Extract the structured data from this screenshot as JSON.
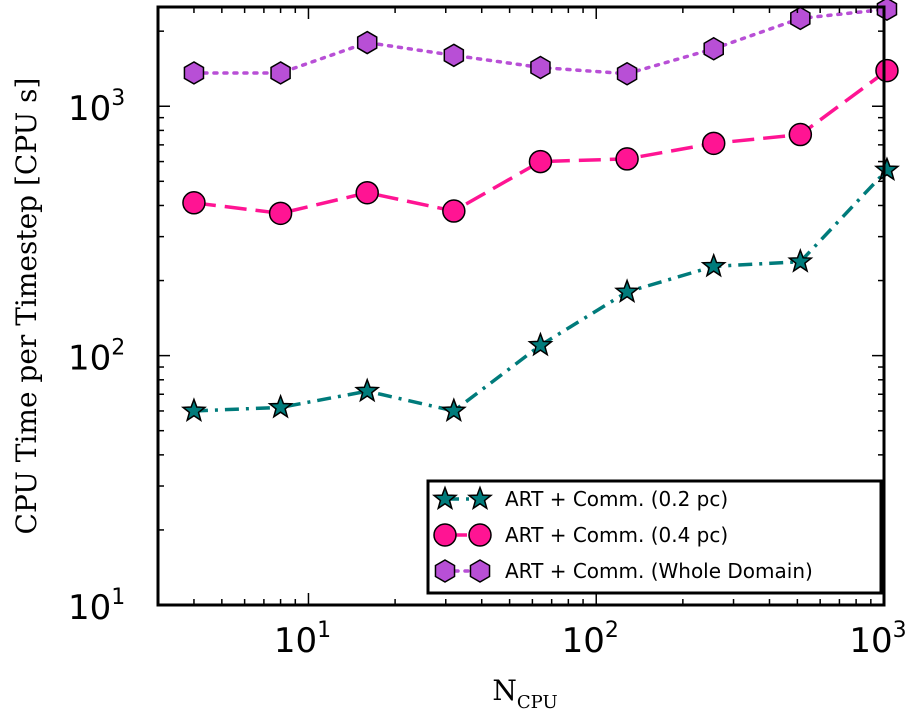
{
  "chart_data": {
    "type": "line",
    "xscale": "log",
    "yscale": "log",
    "xlim": [
      3,
      1000
    ],
    "ylim": [
      10,
      2500
    ],
    "xlabel": {
      "main": "N",
      "sub": "CPU"
    },
    "ylabel": "CPU Time per Timestep [CPU s]",
    "x_ticks": [
      {
        "value": 10,
        "base": "10",
        "exp": "1"
      },
      {
        "value": 100,
        "base": "10",
        "exp": "2"
      },
      {
        "value": 1000,
        "base": "10",
        "exp": "3"
      }
    ],
    "y_ticks": [
      {
        "value": 10,
        "base": "10",
        "exp": "1"
      },
      {
        "value": 100,
        "base": "10",
        "exp": "2"
      },
      {
        "value": 1000,
        "base": "10",
        "exp": "3"
      }
    ],
    "grid": false,
    "legend_position": "bottom-right",
    "x": [
      4,
      8,
      16,
      32,
      64,
      128,
      256,
      512,
      1024
    ],
    "series": [
      {
        "name": "ART + Comm. (0.2 pc)",
        "values": [
          60,
          62,
          72,
          60,
          110,
          180,
          228,
          238,
          555
        ],
        "color": "#007b7b",
        "marker": "star",
        "linestyle": "dashdot"
      },
      {
        "name": "ART + Comm. (0.4 pc)",
        "values": [
          410,
          372,
          450,
          380,
          600,
          615,
          710,
          770,
          1390
        ],
        "color": "#ff1493",
        "marker": "circle",
        "linestyle": "dashed"
      },
      {
        "name": "ART + Comm. (Whole Domain)",
        "values": [
          1360,
          1360,
          1800,
          1600,
          1430,
          1350,
          1700,
          2250,
          2450
        ],
        "color": "#b84fd6",
        "marker": "hexagon",
        "linestyle": "dotted"
      }
    ]
  }
}
